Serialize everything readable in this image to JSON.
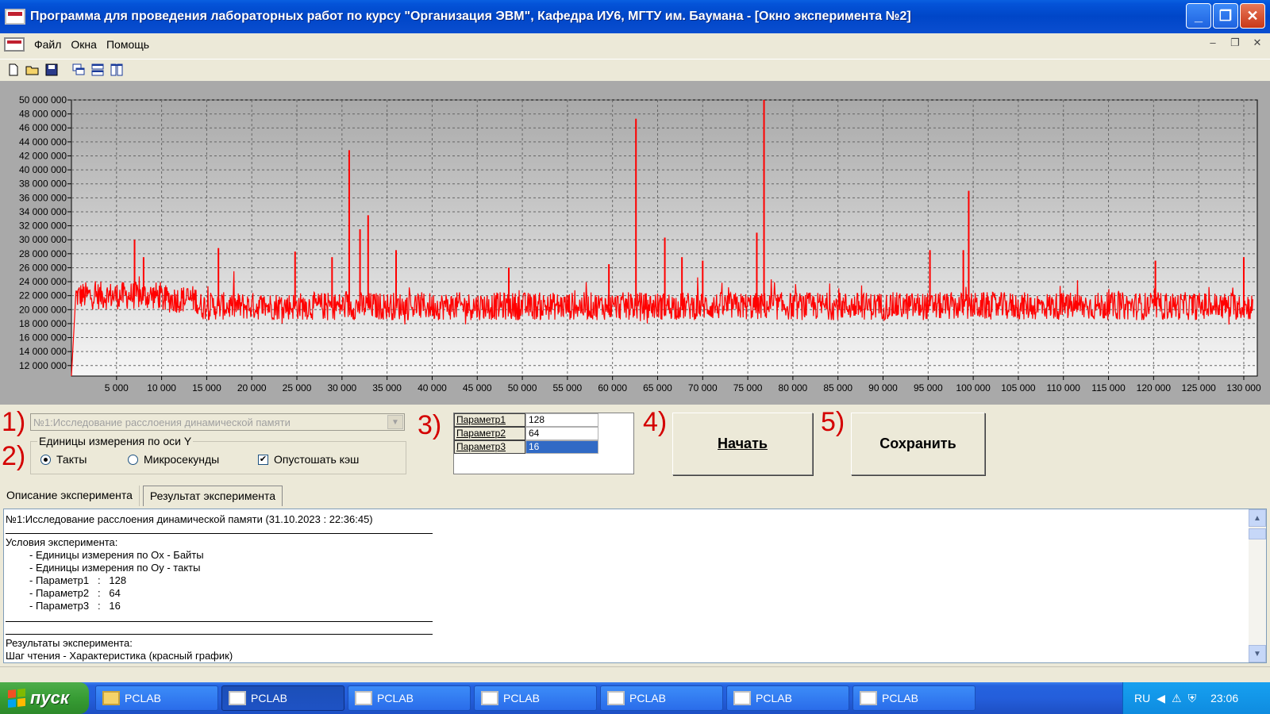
{
  "window": {
    "title": "Программа для проведения лабораторных работ по курсу \"Организация ЭВМ\", Кафедра ИУ6, МГТУ им. Баумана - [Окно эксперимента №2]"
  },
  "menu": {
    "items": [
      "Файл",
      "Окна",
      "Помощь"
    ]
  },
  "chart_data": {
    "type": "line",
    "series": [
      {
        "name": "Шаг чтения - Характеристика",
        "color": "#ff0000",
        "baseline": 20500000,
        "noise_amplitude": 2000000,
        "start_x": 0,
        "start_value": 10500000,
        "segments": [
          {
            "x_from": 500,
            "x_to": 10000,
            "level": 22000000
          },
          {
            "x_from": 10000,
            "x_to": 14000,
            "level": 21500000
          },
          {
            "x_from": 14000,
            "x_to": 130000,
            "level": 20500000
          }
        ],
        "spikes": [
          {
            "x": 7000,
            "y": 30000000
          },
          {
            "x": 8000,
            "y": 27500000
          },
          {
            "x": 16300,
            "y": 28800000
          },
          {
            "x": 24800,
            "y": 28300000
          },
          {
            "x": 28900,
            "y": 27500000
          },
          {
            "x": 30800,
            "y": 42800000
          },
          {
            "x": 32000,
            "y": 31500000
          },
          {
            "x": 32900,
            "y": 33500000
          },
          {
            "x": 36000,
            "y": 28500000
          },
          {
            "x": 48500,
            "y": 26000000
          },
          {
            "x": 59600,
            "y": 26500000
          },
          {
            "x": 62600,
            "y": 47300000
          },
          {
            "x": 65800,
            "y": 30300000
          },
          {
            "x": 67700,
            "y": 27500000
          },
          {
            "x": 70000,
            "y": 27000000
          },
          {
            "x": 76000,
            "y": 31000000
          },
          {
            "x": 76800,
            "y": 50000000
          },
          {
            "x": 95200,
            "y": 28500000
          },
          {
            "x": 98900,
            "y": 28500000
          },
          {
            "x": 99500,
            "y": 37000000
          },
          {
            "x": 120200,
            "y": 27000000
          },
          {
            "x": 130000,
            "y": 27500000
          }
        ]
      }
    ],
    "xlim": [
      0,
      131500
    ],
    "ylim": [
      10500000,
      50000000
    ],
    "x_ticks": [
      "5 000",
      "10 000",
      "15 000",
      "20 000",
      "25 000",
      "30 000",
      "35 000",
      "40 000",
      "45 000",
      "50 000",
      "55 000",
      "60 000",
      "65 000",
      "70 000",
      "75 000",
      "80 000",
      "85 000",
      "90 000",
      "95 000",
      "100 000",
      "105 000",
      "110 000",
      "115 000",
      "120 000",
      "125 000",
      "130 000"
    ],
    "x_tick_values": [
      5000,
      10000,
      15000,
      20000,
      25000,
      30000,
      35000,
      40000,
      45000,
      50000,
      55000,
      60000,
      65000,
      70000,
      75000,
      80000,
      85000,
      90000,
      95000,
      100000,
      105000,
      110000,
      115000,
      120000,
      125000,
      130000
    ],
    "y_ticks": [
      "12 000 000",
      "14 000 000",
      "16 000 000",
      "18 000 000",
      "20 000 000",
      "22 000 000",
      "24 000 000",
      "26 000 000",
      "28 000 000",
      "30 000 000",
      "32 000 000",
      "34 000 000",
      "36 000 000",
      "38 000 000",
      "40 000 000",
      "42 000 000",
      "44 000 000",
      "46 000 000",
      "48 000 000",
      "50 000 000"
    ],
    "y_tick_values": [
      12000000,
      14000000,
      16000000,
      18000000,
      20000000,
      22000000,
      24000000,
      26000000,
      28000000,
      30000000,
      32000000,
      34000000,
      36000000,
      38000000,
      40000000,
      42000000,
      44000000,
      46000000,
      48000000,
      50000000
    ],
    "grid": true
  },
  "labels": {
    "n1": "1)",
    "n2": "2)",
    "n3": "3)",
    "n4": "4)",
    "n5": "5)"
  },
  "experiment_select": {
    "value": "№1:Исследование расслоения динамической памяти"
  },
  "units_group": {
    "legend": "Единицы измерения по оси Y",
    "ticks_label": "Такты",
    "micro_label": "Микросекунды",
    "flush_label": "Опустошать кэш",
    "ticks_checked": true,
    "flush_checked": true
  },
  "params": [
    {
      "name": "Параметр1",
      "value": "128"
    },
    {
      "name": "Параметр2",
      "value": "64"
    },
    {
      "name": "Параметр3",
      "value": "16"
    }
  ],
  "buttons": {
    "start": "Начать",
    "save": "Сохранить"
  },
  "tabs": {
    "description": "Описание эксперимента",
    "result": "Результат эксперимента"
  },
  "memo": {
    "header": "№1:Исследование расслоения динамической памяти (31.10.2023 : 22:36:45)",
    "conditions_title": "Условия эксперимента:",
    "cond1": "- Единицы измерения по Ox - Байты",
    "cond2": "- Единицы измерения по Oy - такты",
    "p1": "- Параметр1   :   128",
    "p2": "- Параметр2   :   64",
    "p3": "- Параметр3   :   16",
    "results_title": "Результаты эксперимента:",
    "results_line": "Шаг чтения - Характеристика (красный график)"
  },
  "taskbar": {
    "start": "пуск",
    "tasks": [
      "PCLAB",
      "PCLAB",
      "PCLAB",
      "PCLAB",
      "PCLAB",
      "PCLAB",
      "PCLAB"
    ],
    "lang": "RU",
    "clock": "23:06"
  }
}
